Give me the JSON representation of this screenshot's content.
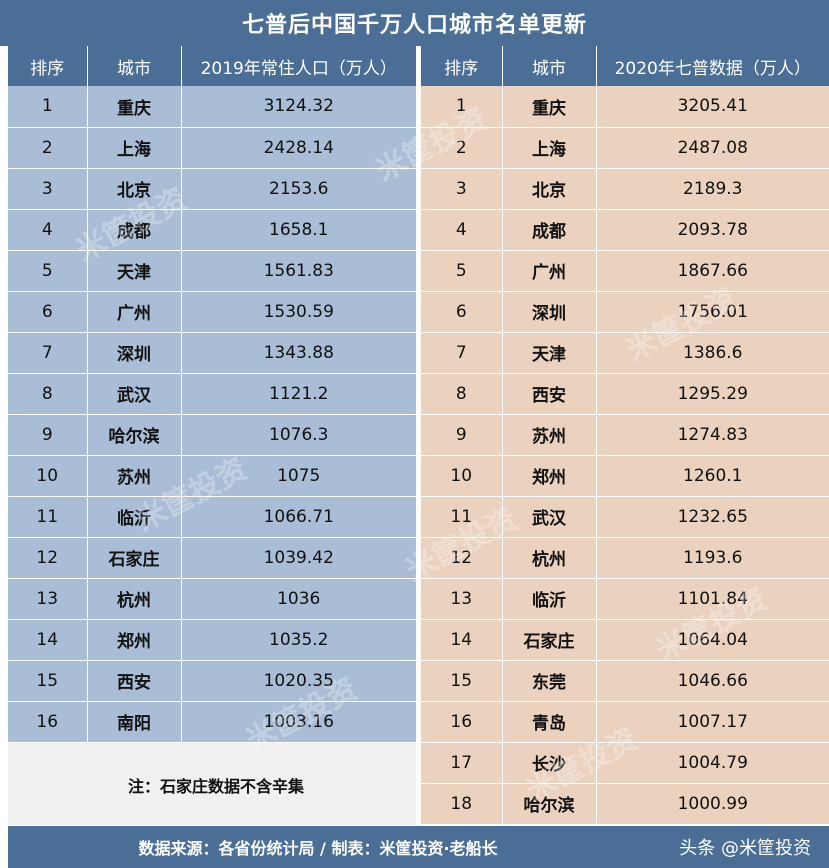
{
  "title": "七普后中国千万人口城市名单更新",
  "left": {
    "headers": [
      "排序",
      "城市",
      "2019年常住人口（万人）"
    ],
    "rows": [
      {
        "rank": "1",
        "city": "重庆",
        "value": "3124.32"
      },
      {
        "rank": "2",
        "city": "上海",
        "value": "2428.14"
      },
      {
        "rank": "3",
        "city": "北京",
        "value": "2153.6"
      },
      {
        "rank": "4",
        "city": "成都",
        "value": "1658.1"
      },
      {
        "rank": "5",
        "city": "天津",
        "value": "1561.83"
      },
      {
        "rank": "6",
        "city": "广州",
        "value": "1530.59"
      },
      {
        "rank": "7",
        "city": "深圳",
        "value": "1343.88"
      },
      {
        "rank": "8",
        "city": "武汉",
        "value": "1121.2"
      },
      {
        "rank": "9",
        "city": "哈尔滨",
        "value": "1076.3"
      },
      {
        "rank": "10",
        "city": "苏州",
        "value": "1075"
      },
      {
        "rank": "11",
        "city": "临沂",
        "value": "1066.71"
      },
      {
        "rank": "12",
        "city": "石家庄",
        "value": "1039.42"
      },
      {
        "rank": "13",
        "city": "杭州",
        "value": "1036"
      },
      {
        "rank": "14",
        "city": "郑州",
        "value": "1035.2"
      },
      {
        "rank": "15",
        "city": "西安",
        "value": "1020.35"
      },
      {
        "rank": "16",
        "city": "南阳",
        "value": "1003.16"
      }
    ]
  },
  "right": {
    "headers": [
      "排序",
      "城市",
      "2020年七普数据（万人）"
    ],
    "rows": [
      {
        "rank": "1",
        "city": "重庆",
        "value": "3205.41"
      },
      {
        "rank": "2",
        "city": "上海",
        "value": "2487.08"
      },
      {
        "rank": "3",
        "city": "北京",
        "value": "2189.3"
      },
      {
        "rank": "4",
        "city": "成都",
        "value": "2093.78"
      },
      {
        "rank": "5",
        "city": "广州",
        "value": "1867.66"
      },
      {
        "rank": "6",
        "city": "深圳",
        "value": "1756.01"
      },
      {
        "rank": "7",
        "city": "天津",
        "value": "1386.6"
      },
      {
        "rank": "8",
        "city": "西安",
        "value": "1295.29"
      },
      {
        "rank": "9",
        "city": "苏州",
        "value": "1274.83"
      },
      {
        "rank": "10",
        "city": "郑州",
        "value": "1260.1"
      },
      {
        "rank": "11",
        "city": "武汉",
        "value": "1232.65"
      },
      {
        "rank": "12",
        "city": "杭州",
        "value": "1193.6"
      },
      {
        "rank": "13",
        "city": "临沂",
        "value": "1101.84"
      },
      {
        "rank": "14",
        "city": "石家庄",
        "value": "1064.04"
      },
      {
        "rank": "15",
        "city": "东莞",
        "value": "1046.66"
      },
      {
        "rank": "16",
        "city": "青岛",
        "value": "1007.17"
      },
      {
        "rank": "17",
        "city": "长沙",
        "value": "1004.79"
      },
      {
        "rank": "18",
        "city": "哈尔滨",
        "value": "1000.99"
      }
    ]
  },
  "note": "注：石家庄数据不含辛集",
  "footer": {
    "source": "数据来源：各省份统计局 / 制表：米筐投资·老船长",
    "brand": "头条 @米筐投资"
  },
  "watermark": "米筐投资",
  "colors": {
    "header": "#4a6e96",
    "left_cells": "#a9bed6",
    "right_cells": "#ead2bf"
  }
}
